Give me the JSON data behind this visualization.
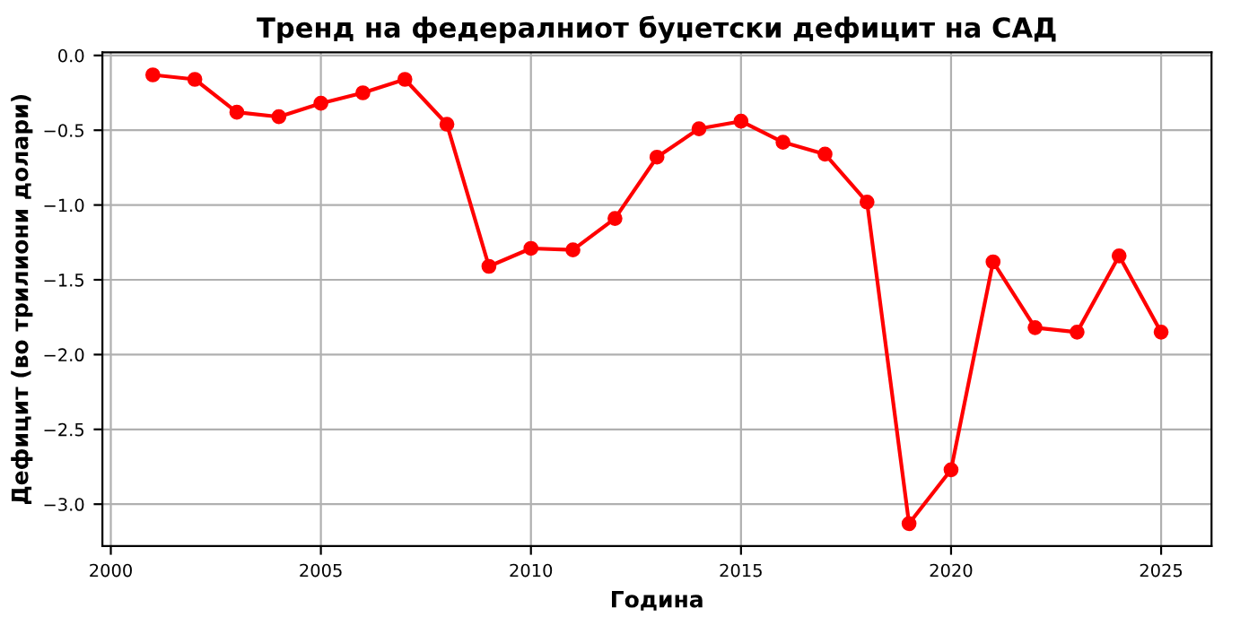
{
  "chart_data": {
    "type": "line",
    "title": "Тренд на федералниот буџетски дефицит на САД",
    "xlabel": "Година",
    "ylabel": "Дефицит (во трилиони долари)",
    "x": [
      2001,
      2002,
      2003,
      2004,
      2005,
      2006,
      2007,
      2008,
      2009,
      2010,
      2011,
      2012,
      2013,
      2014,
      2015,
      2016,
      2017,
      2018,
      2019,
      2020,
      2021,
      2022,
      2023,
      2024,
      2025
    ],
    "series": [
      {
        "color": "#ff0000",
        "values": [
          -0.13,
          -0.16,
          -0.38,
          -0.41,
          -0.32,
          -0.25,
          -0.16,
          -0.46,
          -1.41,
          -1.29,
          -1.3,
          -1.09,
          -0.68,
          -0.49,
          -0.44,
          -0.58,
          -0.66,
          -0.98,
          -3.13,
          -2.77,
          -1.38,
          -1.82,
          -1.85,
          -1.34,
          -1.85
        ]
      }
    ],
    "xlim": [
      1999.8,
      2026.2
    ],
    "ylim": [
      -3.28,
      0.02
    ],
    "xticks": [
      2000,
      2005,
      2010,
      2015,
      2020,
      2025
    ],
    "yticks": [
      {
        "value": -3,
        "label": "−3.0"
      },
      {
        "value": -2.5,
        "label": "−2.5"
      },
      {
        "value": -2,
        "label": "−2.0"
      },
      {
        "value": -1.5,
        "label": "−1.5"
      },
      {
        "value": -1,
        "label": "−1.0"
      },
      {
        "value": -0.5,
        "label": "−0.5"
      },
      {
        "value": 0,
        "label": "0.0"
      }
    ],
    "grid": true,
    "marker": "circle",
    "line_style": "solid"
  }
}
